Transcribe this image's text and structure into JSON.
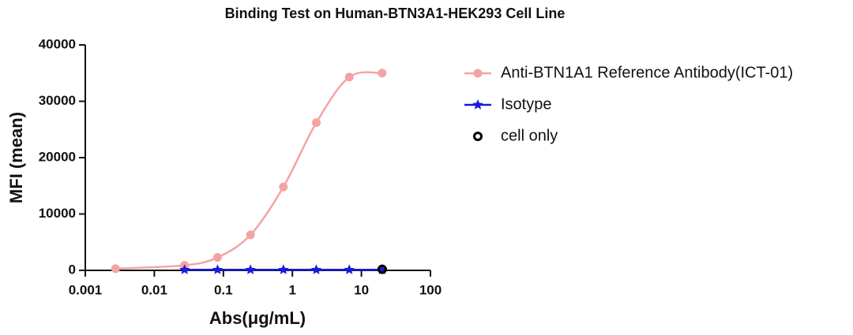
{
  "chart_data": {
    "type": "scatter",
    "title": "Binding Test on Human-BTN3A1-HEK293 Cell Line",
    "xlabel": "Abs(μg/mL)",
    "ylabel": "MFI (mean)",
    "xscale": "log",
    "xlim": [
      0.001,
      100
    ],
    "xticks": [
      0.001,
      0.01,
      0.1,
      1,
      10,
      100
    ],
    "ylim": [
      0,
      40000
    ],
    "yticks": [
      0,
      10000,
      20000,
      30000,
      40000
    ],
    "legend": "upper right",
    "series": [
      {
        "name": "Anti-BTN1A1 Reference Antibody(ICT-01)",
        "color": "#f4a3a3",
        "marker": "circle",
        "line": true,
        "x": [
          0.00274,
          0.0274,
          0.0823,
          0.247,
          0.741,
          2.22,
          6.67,
          20
        ],
        "values": [
          300,
          900,
          2300,
          6300,
          14800,
          26200,
          34300,
          35000
        ]
      },
      {
        "name": "Isotype",
        "color": "#1a1adb",
        "marker": "star",
        "line": true,
        "x": [
          0.0274,
          0.0823,
          0.247,
          0.741,
          2.22,
          6.67,
          20
        ],
        "values": [
          100,
          100,
          100,
          100,
          100,
          100,
          100
        ]
      },
      {
        "name": "cell only",
        "color": "#000000",
        "marker": "open-circle",
        "line": false,
        "x": [
          20
        ],
        "values": [
          200
        ]
      }
    ]
  }
}
